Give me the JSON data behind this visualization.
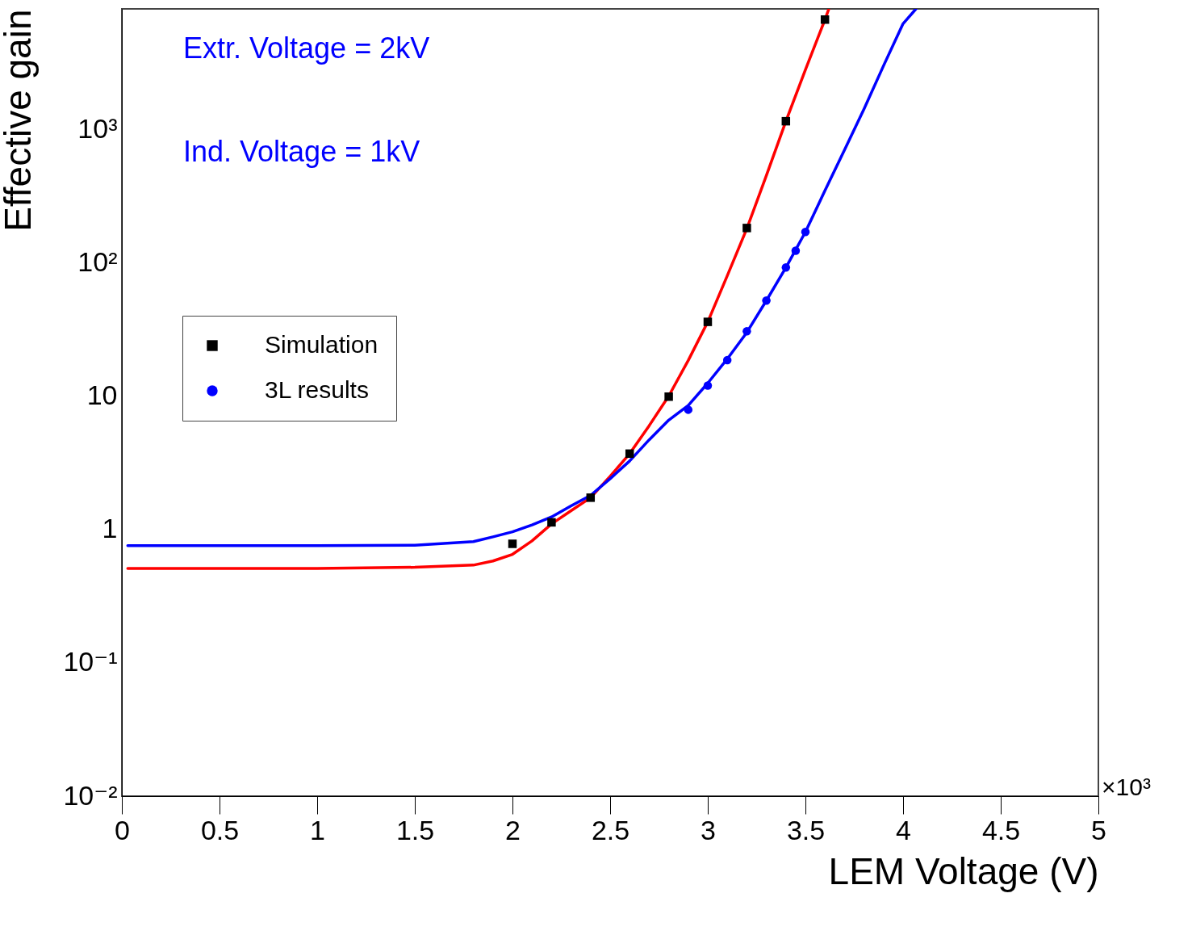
{
  "chart_data": {
    "type": "scatter",
    "xlabel": "LEM Voltage (V)",
    "ylabel": "Effective gain",
    "log": "y",
    "legend": "left",
    "grid": false,
    "xlim": [
      0,
      5
    ],
    "xticks": [
      0,
      0.5,
      1,
      1.5,
      2,
      2.5,
      3,
      3.5,
      4,
      4.5,
      5
    ],
    "ylim": [
      0.01,
      8000
    ],
    "yticks": [
      {
        "value": 0.01,
        "label": "10⁻²"
      },
      {
        "value": 0.1,
        "label": "10⁻¹"
      },
      1,
      10,
      {
        "value": 100,
        "label": "10²"
      },
      {
        "value": 1000,
        "label": "10³"
      }
    ],
    "annotations": [
      "Extr. Voltage = 2kV",
      "Ind. Voltage = 1kV",
      "×10³"
    ],
    "series": [
      {
        "name": "Simulation",
        "marker": "square",
        "color": "#000000",
        "x": [
          2,
          2.2,
          2.4,
          2.6,
          2.8,
          3,
          3.2,
          3.4,
          3.6
        ],
        "values": [
          0.78,
          1.13,
          1.73,
          3.7,
          9.9,
          36,
          182,
          1150,
          6650
        ]
      },
      {
        "name": "3L results",
        "marker": "circle",
        "color": "#0000ff",
        "x": [
          2.9,
          3,
          3.1,
          3.2,
          3.3,
          3.4,
          3.45,
          3.5
        ],
        "values": [
          7.9,
          12,
          18.6,
          30.6,
          52,
          92,
          123,
          170
        ]
      },
      {
        "type": "line",
        "color": "#ff0000",
        "x": [
          0.03,
          1,
          1.5,
          1.8,
          1.9,
          2,
          2.1,
          2.2,
          2.3,
          2.4,
          2.5,
          2.6,
          2.7,
          2.8,
          2.9,
          3,
          3.1,
          3.2,
          3.3,
          3.4,
          3.5,
          3.6,
          3.62
        ],
        "values": [
          0.51,
          0.51,
          0.52,
          0.54,
          0.58,
          0.65,
          0.82,
          1.1,
          1.38,
          1.73,
          2.5,
          3.7,
          6,
          10,
          18.5,
          36,
          80,
          180,
          450,
          1150,
          2800,
          6650,
          8000
        ]
      },
      {
        "type": "line",
        "color": "#0000ff",
        "x": [
          0.03,
          1,
          1.5,
          1.8,
          1.9,
          2,
          2.1,
          2.2,
          2.3,
          2.4,
          2.5,
          2.6,
          2.7,
          2.8,
          2.9,
          3,
          3.1,
          3.2,
          3.3,
          3.4,
          3.5,
          3.6,
          3.7,
          3.8,
          3.9,
          4,
          4.066
        ],
        "values": [
          0.755,
          0.755,
          0.76,
          0.81,
          0.88,
          0.96,
          1.08,
          1.24,
          1.5,
          1.8,
          2.4,
          3.26,
          4.7,
          6.6,
          8.5,
          12.5,
          19,
          30,
          52,
          92,
          170,
          347,
          700,
          1420,
          3000,
          6200,
          8000
        ]
      }
    ]
  }
}
